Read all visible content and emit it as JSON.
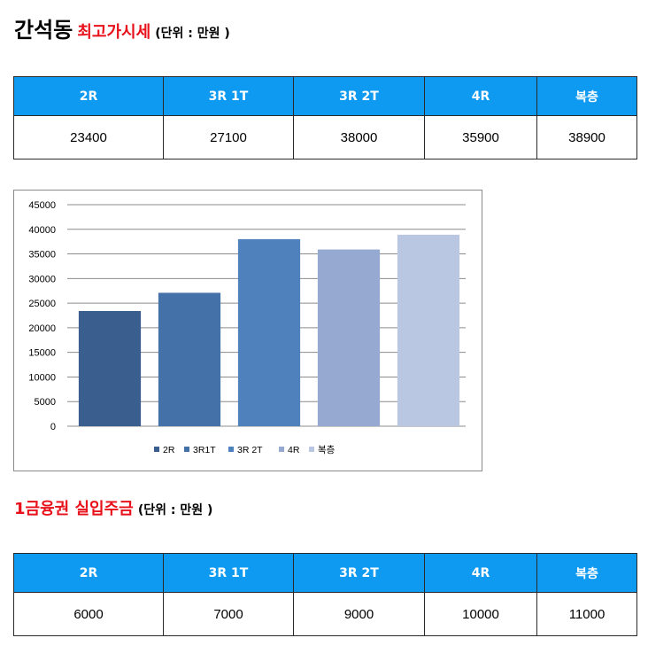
{
  "section1": {
    "area": "간석동",
    "title": "최고가시세",
    "unit": "(단위 : 만원 )"
  },
  "table1": {
    "headers": [
      "2R",
      "3R 1T",
      "3R 2T",
      "4R",
      "복층"
    ],
    "values": [
      "23400",
      "27100",
      "38000",
      "35900",
      "38900"
    ]
  },
  "chart_data": {
    "type": "bar",
    "categories": [
      "2R",
      "3R1T",
      "3R 2T",
      "4R",
      "복층"
    ],
    "values": [
      23400,
      27100,
      38000,
      35900,
      38900
    ],
    "ylim": [
      0,
      45000
    ],
    "yticks": [
      0,
      5000,
      10000,
      15000,
      20000,
      25000,
      30000,
      35000,
      40000,
      45000
    ],
    "colors": [
      "#3a5f8f",
      "#4472a8",
      "#4f81bd",
      "#95a9d1",
      "#b9c7e2"
    ],
    "grid": true,
    "legend": "bottom"
  },
  "section2": {
    "title": "1금융권 실입주금",
    "unit": "(단위 : 만원 )"
  },
  "table2": {
    "headers": [
      "2R",
      "3R 1T",
      "3R 2T",
      "4R",
      "복층"
    ],
    "values": [
      "6000",
      "7000",
      "9000",
      "10000",
      "11000"
    ]
  }
}
